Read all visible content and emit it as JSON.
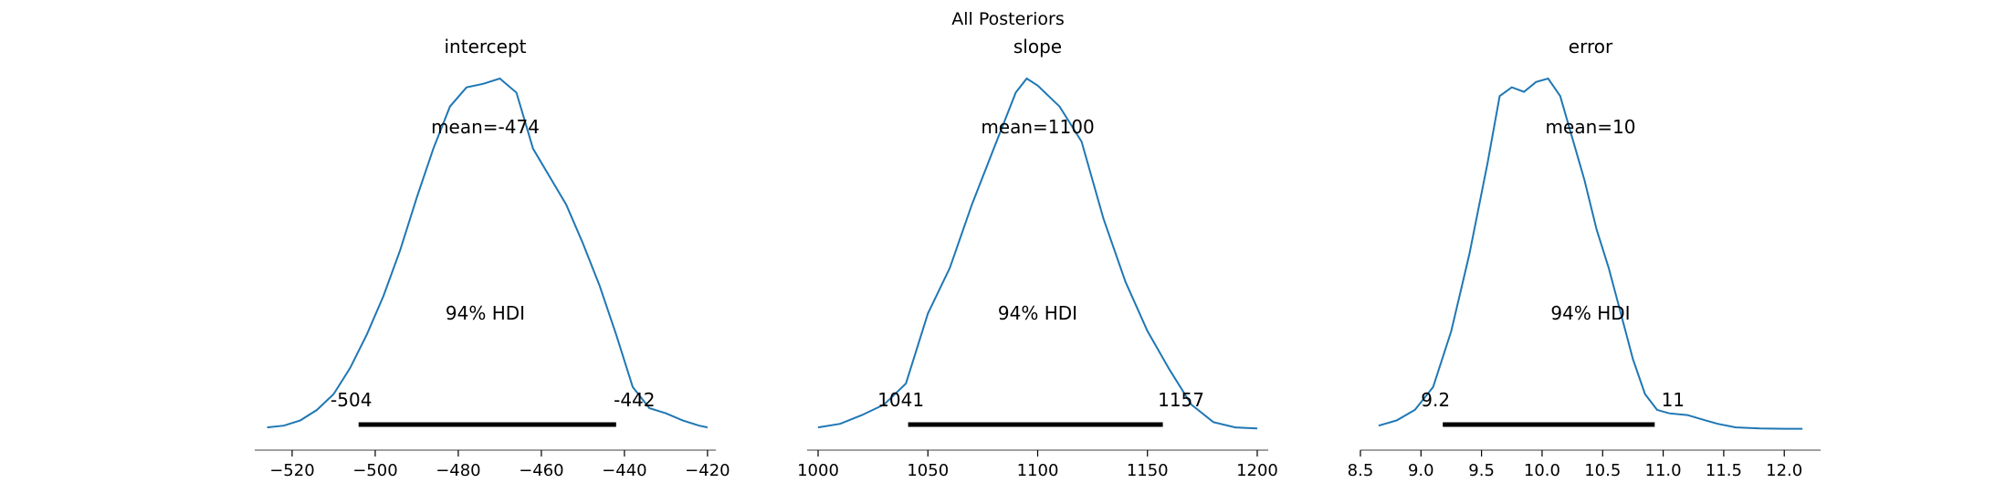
{
  "figure": {
    "suptitle": "All Posteriors",
    "line_color": "#1f77b4",
    "hdi_color": "#000000",
    "axis_color": "#808080"
  },
  "chart_data": [
    {
      "type": "line",
      "title": "intercept",
      "mean_label": "mean=-474",
      "hdi_label": "94% HDI",
      "hdi_low_label": "-504",
      "hdi_high_label": "-442",
      "hdi": [
        -504,
        -442
      ],
      "xlim": [
        -529,
        -418
      ],
      "ylim": [
        0,
        1
      ],
      "xticks": [
        -520,
        -500,
        -480,
        -460,
        -440,
        -420
      ],
      "xticklabels": [
        "−520",
        "−500",
        "−480",
        "−460",
        "−440",
        "−420"
      ],
      "x": [
        -526,
        -522,
        -518,
        -514,
        -510,
        -506,
        -502,
        -498,
        -494,
        -490,
        -486,
        -482,
        -478,
        -474,
        -470,
        -466,
        -462,
        -458,
        -454,
        -450,
        -446,
        -442,
        -438,
        -434,
        -430,
        -426,
        -422,
        -420
      ],
      "y": [
        0.005,
        0.01,
        0.025,
        0.055,
        0.1,
        0.175,
        0.27,
        0.38,
        0.51,
        0.66,
        0.8,
        0.92,
        0.975,
        0.985,
        1.0,
        0.96,
        0.8,
        0.72,
        0.64,
        0.53,
        0.41,
        0.27,
        0.12,
        0.06,
        0.045,
        0.025,
        0.01,
        0.005
      ]
    },
    {
      "type": "line",
      "title": "slope",
      "mean_label": "mean=1100",
      "hdi_label": "94% HDI",
      "hdi_low_label": "1041",
      "hdi_high_label": "1157",
      "hdi": [
        1041,
        1157
      ],
      "xlim": [
        995,
        1205
      ],
      "ylim": [
        0,
        1
      ],
      "xticks": [
        1000,
        1050,
        1100,
        1150,
        1200
      ],
      "xticklabels": [
        "1000",
        "1050",
        "1100",
        "1150",
        "1200"
      ],
      "x": [
        1000,
        1010,
        1020,
        1030,
        1040,
        1050,
        1060,
        1070,
        1080,
        1090,
        1095,
        1100,
        1105,
        1110,
        1120,
        1130,
        1140,
        1150,
        1160,
        1170,
        1180,
        1190,
        1200
      ],
      "y": [
        0.005,
        0.015,
        0.04,
        0.07,
        0.13,
        0.33,
        0.46,
        0.64,
        0.8,
        0.96,
        1.0,
        0.98,
        0.95,
        0.92,
        0.82,
        0.6,
        0.42,
        0.28,
        0.17,
        0.07,
        0.02,
        0.005,
        0.002
      ]
    },
    {
      "type": "line",
      "title": "error",
      "mean_label": "mean=10",
      "hdi_label": "94% HDI",
      "hdi_low_label": "9.2",
      "hdi_high_label": "11",
      "hdi": [
        9.18,
        10.93
      ],
      "xlim": [
        8.5,
        12.3
      ],
      "ylim": [
        0,
        1
      ],
      "xticks": [
        8.5,
        9.0,
        9.5,
        10.0,
        10.5,
        11.0,
        11.5,
        12.0
      ],
      "xticklabels": [
        "8.5",
        "9.0",
        "9.5",
        "10.0",
        "10.5",
        "11.0",
        "11.5",
        "12.0"
      ],
      "x": [
        8.65,
        8.8,
        8.95,
        9.1,
        9.25,
        9.4,
        9.55,
        9.65,
        9.75,
        9.85,
        9.95,
        10.05,
        10.15,
        10.25,
        10.35,
        10.45,
        10.55,
        10.65,
        10.75,
        10.85,
        10.95,
        11.05,
        11.2,
        11.35,
        11.45,
        11.6,
        11.8,
        12.0,
        12.15
      ],
      "y": [
        0.01,
        0.025,
        0.055,
        0.12,
        0.28,
        0.5,
        0.76,
        0.95,
        0.975,
        0.962,
        0.99,
        1.0,
        0.95,
        0.83,
        0.71,
        0.57,
        0.46,
        0.33,
        0.2,
        0.1,
        0.055,
        0.045,
        0.04,
        0.025,
        0.015,
        0.005,
        0.002,
        0.001,
        0.001
      ]
    }
  ]
}
